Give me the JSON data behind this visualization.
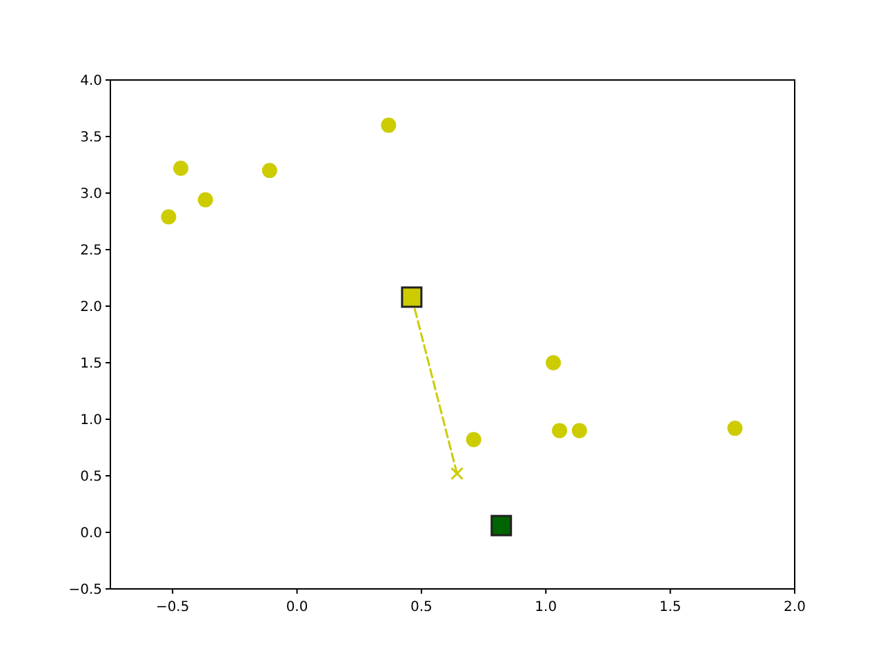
{
  "chart_data": {
    "type": "scatter",
    "xlim": [
      -0.75,
      2.0
    ],
    "xticks": [
      {
        "value": -0.5,
        "label": "−0.5"
      },
      {
        "value": 0,
        "label": "0.0"
      },
      {
        "value": 0.5,
        "label": "0.5"
      },
      {
        "value": 1,
        "label": "1.0"
      },
      {
        "value": 1.5,
        "label": "1.5"
      },
      {
        "value": 2,
        "label": "2.0"
      }
    ],
    "ylim": [
      -0.5,
      4.0
    ],
    "yticks": [
      {
        "value": -0.5,
        "label": "−0.5"
      },
      {
        "value": 0,
        "label": "0.0"
      },
      {
        "value": 0.5,
        "label": "0.5"
      },
      {
        "value": 1,
        "label": "1.0"
      },
      {
        "value": 1.5,
        "label": "1.5"
      },
      {
        "value": 2,
        "label": "2.0"
      },
      {
        "value": 2.5,
        "label": "2.5"
      },
      {
        "value": 3,
        "label": "3.0"
      },
      {
        "value": 3.5,
        "label": "3.5"
      },
      {
        "value": 4,
        "label": "4.0"
      }
    ],
    "grid": false,
    "series": [
      {
        "marker": "circle",
        "color": "#cccc00",
        "x": [
          -0.516,
          -0.467,
          -0.368,
          -0.11,
          0.368,
          0.71,
          1.03,
          1.055,
          1.135,
          1.76
        ],
        "values": [
          2.79,
          3.22,
          2.94,
          3.2,
          3.6,
          0.82,
          1.5,
          0.9,
          0.9,
          0.92
        ]
      },
      {
        "type": "line",
        "marker": "none",
        "line_style": "dashed",
        "color": "#cccc00",
        "x": [
          0.461,
          0.643
        ],
        "values": [
          2.08,
          0.52
        ]
      },
      {
        "marker": "cross",
        "color": "#cccc00",
        "x": [
          0.643
        ],
        "values": [
          0.52
        ]
      },
      {
        "marker": "square",
        "color": "#cccc00",
        "x": [
          0.461
        ],
        "values": [
          2.08
        ]
      },
      {
        "marker": "square",
        "color": "#006400",
        "x": [
          0.821
        ],
        "values": [
          0.06
        ]
      }
    ]
  }
}
